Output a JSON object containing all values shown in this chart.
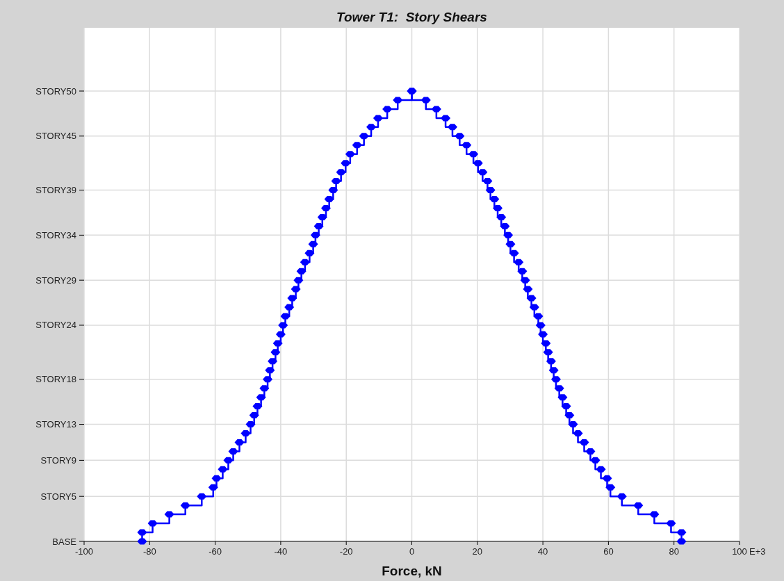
{
  "chart_data": {
    "type": "step",
    "orientation": "horizontal",
    "title": "Tower T1:  Story Shears",
    "xlabel": "Force, kN",
    "annotations": [
      "E+3"
    ],
    "xlim": [
      -100,
      100
    ],
    "xticks": [
      -100,
      -80,
      -60,
      -40,
      -20,
      0,
      20,
      40,
      60,
      80,
      100
    ],
    "categories": [
      "STORY50",
      null,
      null,
      null,
      null,
      "STORY45",
      null,
      null,
      null,
      null,
      null,
      "STORY39",
      null,
      null,
      null,
      null,
      "STORY34",
      null,
      null,
      null,
      null,
      "STORY29",
      null,
      null,
      null,
      null,
      "STORY24",
      null,
      null,
      null,
      null,
      null,
      "STORY18",
      null,
      null,
      null,
      null,
      "STORY13",
      null,
      null,
      null,
      "STORY9",
      null,
      null,
      null,
      "STORY5",
      null,
      null,
      null,
      null,
      "BASE"
    ],
    "grid": true,
    "marker": "diamond",
    "line_style": "solid",
    "series": [
      {
        "color": "#0000ff",
        "values": [
          0,
          4.3,
          7.5,
          10.3,
          12.4,
          14.6,
          16.7,
          18.8,
          20.2,
          21.6,
          23.1,
          24.0,
          25.2,
          26.2,
          27.3,
          28.4,
          29.4,
          30.1,
          31.2,
          32.6,
          33.7,
          34.6,
          35.4,
          36.5,
          37.4,
          38.6,
          39.3,
          40.0,
          40.9,
          41.6,
          42.5,
          43.3,
          44.0,
          45.0,
          46.0,
          47.1,
          48.1,
          49.2,
          50.7,
          52.6,
          54.5,
          56.0,
          57.7,
          59.6,
          60.6,
          64.1,
          69.1,
          74.0,
          79.1,
          82.3,
          82.3
        ]
      },
      {
        "color": "#0000ff",
        "values": [
          0,
          -4.3,
          -7.5,
          -10.3,
          -12.4,
          -14.6,
          -16.7,
          -18.8,
          -20.2,
          -21.6,
          -23.1,
          -24.0,
          -25.2,
          -26.2,
          -27.3,
          -28.4,
          -29.4,
          -30.1,
          -31.2,
          -32.6,
          -33.7,
          -34.6,
          -35.4,
          -36.5,
          -37.4,
          -38.6,
          -39.3,
          -40.0,
          -40.9,
          -41.6,
          -42.5,
          -43.3,
          -44.0,
          -45.0,
          -46.0,
          -47.1,
          -48.1,
          -49.2,
          -50.7,
          -52.6,
          -54.5,
          -56.0,
          -57.7,
          -59.6,
          -60.6,
          -64.1,
          -69.1,
          -74.0,
          -79.1,
          -82.3,
          -82.3
        ]
      }
    ]
  }
}
